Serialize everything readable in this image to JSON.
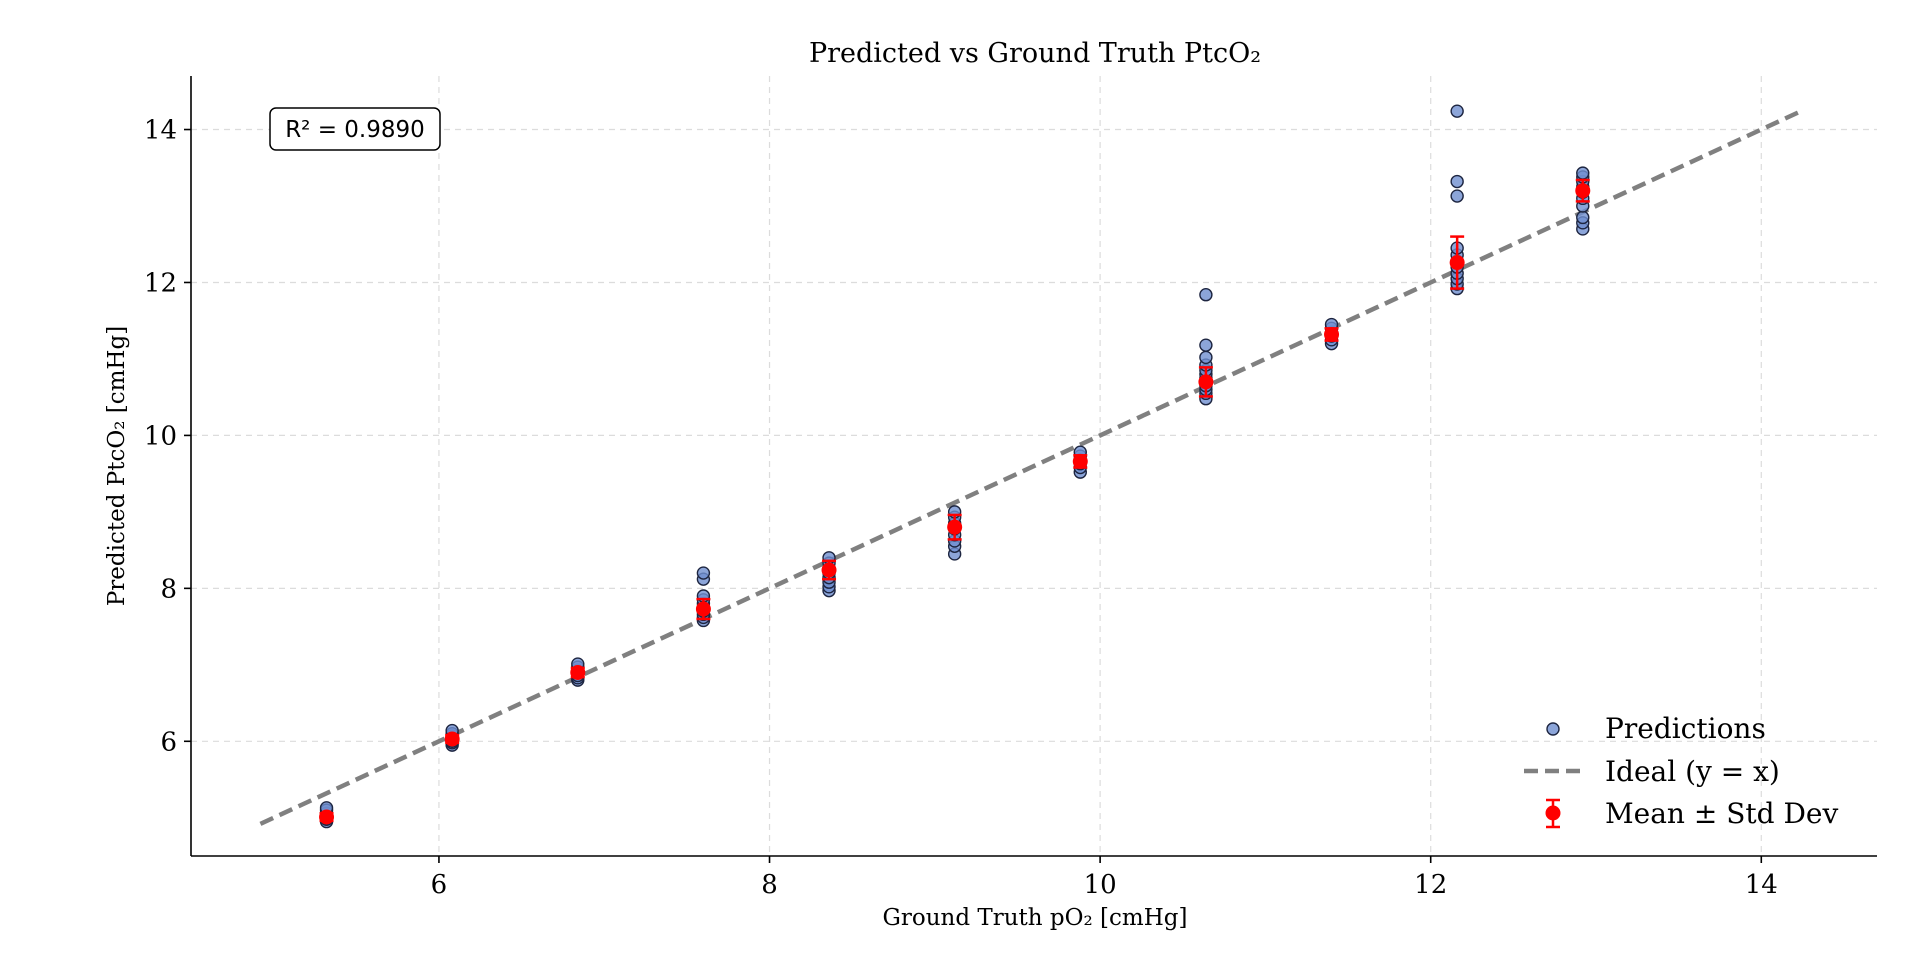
{
  "chart_data": {
    "type": "scatter",
    "title": "Predicted vs Ground Truth PtcO₂",
    "xlabel": "Ground Truth pO₂ [cmHg]",
    "ylabel": "Predicted PtcO₂ [cmHg]",
    "xlim": [
      4.5,
      14.7
    ],
    "ylim": [
      4.5,
      14.7
    ],
    "x_ticks": [
      6,
      8,
      10,
      12,
      14
    ],
    "y_ticks": [
      6,
      8,
      10,
      12,
      14
    ],
    "grid": true,
    "annotation": {
      "label": "R² = 0.9890",
      "r2": 0.989,
      "position": "top-left"
    },
    "legend": {
      "position": "bottom-right",
      "entries": [
        "Predictions",
        "Ideal (y = x)",
        "Mean ± Std Dev"
      ]
    },
    "colors": {
      "predictions": "#6f8fd0",
      "ideal": "#808080",
      "mean": "#ff0000"
    },
    "ideal_line": {
      "x": [
        4.92,
        14.25
      ],
      "y": [
        4.92,
        14.25
      ]
    },
    "series": [
      {
        "name": "Predictions",
        "points": [
          {
            "x": 5.32,
            "ys": [
              4.95,
              4.98,
              5.0,
              5.03,
              5.06,
              5.1,
              5.13
            ]
          },
          {
            "x": 6.08,
            "ys": [
              5.95,
              5.98,
              6.0,
              6.03,
              6.07,
              6.1,
              6.14
            ]
          },
          {
            "x": 6.84,
            "ys": [
              6.8,
              6.83,
              6.86,
              6.9,
              6.93,
              6.97,
              7.01
            ]
          },
          {
            "x": 7.6,
            "ys": [
              7.58,
              7.62,
              7.66,
              7.7,
              7.75,
              7.8,
              7.85,
              7.9,
              8.12,
              8.2
            ]
          },
          {
            "x": 8.36,
            "ys": [
              7.97,
              8.02,
              8.08,
              8.14,
              8.2,
              8.26,
              8.33,
              8.4
            ]
          },
          {
            "x": 9.12,
            "ys": [
              8.45,
              8.55,
              8.62,
              8.7,
              8.78,
              8.85,
              8.93,
              9.0
            ]
          },
          {
            "x": 9.88,
            "ys": [
              9.52,
              9.58,
              9.63,
              9.68,
              9.73,
              9.78
            ]
          },
          {
            "x": 10.64,
            "ys": [
              10.48,
              10.55,
              10.6,
              10.65,
              10.7,
              10.75,
              10.8,
              10.85,
              10.92,
              11.02,
              11.18,
              11.84
            ]
          },
          {
            "x": 11.4,
            "ys": [
              11.2,
              11.25,
              11.3,
              11.35,
              11.4,
              11.45
            ]
          },
          {
            "x": 12.16,
            "ys": [
              11.92,
              11.98,
              12.05,
              12.12,
              12.2,
              12.28,
              12.36,
              12.45,
              13.13,
              13.32,
              14.24
            ]
          },
          {
            "x": 12.92,
            "ys": [
              12.7,
              12.78,
              12.85,
              13.0,
              13.1,
              13.18,
              13.25,
              13.32,
              13.38,
              13.43
            ]
          }
        ]
      },
      {
        "name": "Mean ± Std Dev",
        "points": [
          {
            "x": 5.32,
            "mean": 5.01,
            "std": 0.05
          },
          {
            "x": 6.08,
            "mean": 6.03,
            "std": 0.05
          },
          {
            "x": 6.84,
            "mean": 6.9,
            "std": 0.06
          },
          {
            "x": 7.6,
            "mean": 7.73,
            "std": 0.13
          },
          {
            "x": 8.36,
            "mean": 8.24,
            "std": 0.12
          },
          {
            "x": 9.12,
            "mean": 8.8,
            "std": 0.16
          },
          {
            "x": 9.88,
            "mean": 9.66,
            "std": 0.08
          },
          {
            "x": 10.64,
            "mean": 10.7,
            "std": 0.19
          },
          {
            "x": 11.4,
            "mean": 11.32,
            "std": 0.08
          },
          {
            "x": 12.16,
            "mean": 12.26,
            "std": 0.34
          },
          {
            "x": 12.92,
            "mean": 13.2,
            "std": 0.14
          }
        ]
      }
    ]
  }
}
